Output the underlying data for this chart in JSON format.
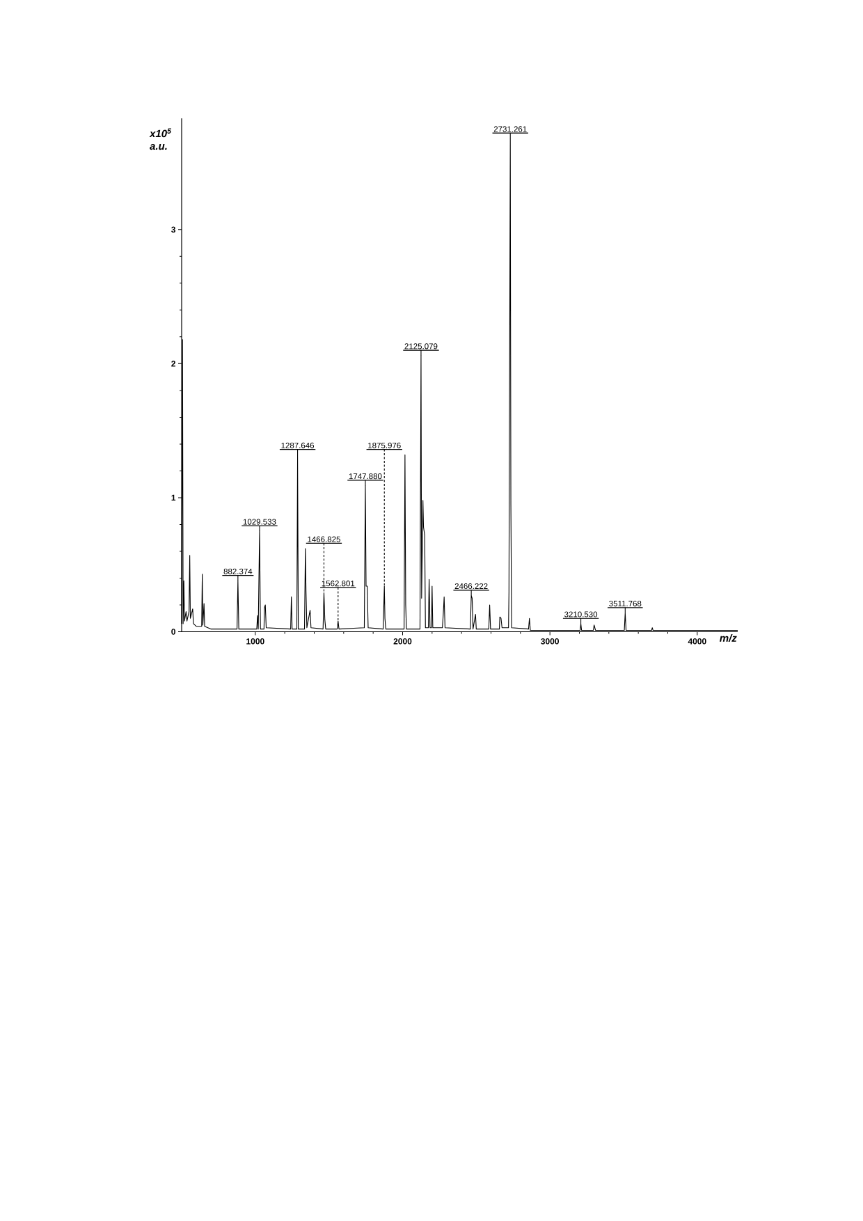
{
  "chart_data": {
    "type": "line",
    "xlabel": "m/z",
    "ylabel": "x10$^{5}$ a.u.",
    "xlim": [
      500,
      4275
    ],
    "ylim": [
      0,
      3.83
    ],
    "xticks": [
      1000,
      2000,
      3000,
      4000
    ],
    "yticks": [
      0,
      1,
      2,
      3
    ],
    "annotations": [
      {
        "text": "882.374",
        "x": 882,
        "y": 0.38
      },
      {
        "text": "1029.533",
        "x": 1029,
        "y": 0.75
      },
      {
        "text": "1287.646",
        "x": 1287,
        "y": 1.32
      },
      {
        "text": "1466.825",
        "x": 1466,
        "y": 0.29
      },
      {
        "text": "1562.801",
        "x": 1562,
        "y": 0.08
      },
      {
        "text": "1747.880",
        "x": 1747,
        "y": 1.09
      },
      {
        "text": "1875.976",
        "x": 1876,
        "y": 0.34
      },
      {
        "text": "2125.079",
        "x": 2125,
        "y": 2.06
      },
      {
        "text": "2466.222",
        "x": 2466,
        "y": 0.27
      },
      {
        "text": "2731.261",
        "x": 2731,
        "y": 3.68
      },
      {
        "text": "3210.530",
        "x": 3210,
        "y": 0.06
      },
      {
        "text": "3511.768",
        "x": 3511,
        "y": 0.14
      }
    ],
    "series": [
      {
        "color": "#000000",
        "x": [
          500,
          506,
          510,
          515,
          519,
          530,
          536,
          550,
          555,
          559,
          575,
          580,
          600,
          636,
          640,
          644,
          652,
          656,
          700,
          876,
          882,
          888,
          1010,
          1015,
          1020,
          1029,
          1035,
          1059,
          1062,
          1068,
          1074,
          1240,
          1245,
          1250,
          1282,
          1287,
          1292,
          1334,
          1340,
          1344,
          1350,
          1372,
          1378,
          1460,
          1466,
          1472,
          1478,
          1556,
          1562,
          1568,
          1740,
          1747,
          1752,
          1760,
          1766,
          1868,
          1876,
          1880,
          1886,
          2010,
          2016,
          2021,
          2026,
          2118,
          2125,
          2129,
          2138,
          2142,
          2150,
          2155,
          2175,
          2180,
          2186,
          2196,
          2200,
          2205,
          2270,
          2276,
          2282,
          2288,
          2460,
          2466,
          2472,
          2478,
          2495,
          2500,
          2585,
          2591,
          2597,
          2650,
          2657,
          2660,
          2668,
          2675,
          2715,
          2719,
          2722,
          2731,
          2735,
          2740,
          2855,
          2861,
          2867,
          3205,
          3210,
          3215,
          3295,
          3300,
          3310,
          3505,
          3511,
          3517,
          3690,
          3695,
          3700,
          4275
        ],
        "values": [
          0.06,
          2.18,
          0.06,
          0.38,
          0.08,
          0.15,
          0.08,
          0.15,
          0.57,
          0.1,
          0.17,
          0.06,
          0.04,
          0.04,
          0.43,
          0.05,
          0.21,
          0.04,
          0.02,
          0.02,
          0.38,
          0.02,
          0.02,
          0.12,
          0.02,
          0.75,
          0.02,
          0.02,
          0.18,
          0.2,
          0.03,
          0.02,
          0.26,
          0.02,
          0.02,
          1.32,
          0.02,
          0.02,
          0.62,
          0.31,
          0.03,
          0.16,
          0.03,
          0.02,
          0.29,
          0.09,
          0.02,
          0.02,
          0.08,
          0.02,
          0.03,
          1.09,
          0.34,
          0.34,
          0.03,
          0.02,
          0.34,
          0.1,
          0.02,
          0.02,
          1.32,
          0.2,
          0.02,
          0.02,
          2.06,
          0.25,
          0.98,
          0.78,
          0.72,
          0.03,
          0.03,
          0.39,
          0.03,
          0.03,
          0.34,
          0.03,
          0.03,
          0.13,
          0.26,
          0.03,
          0.02,
          0.27,
          0.25,
          0.02,
          0.13,
          0.02,
          0.02,
          0.2,
          0.02,
          0.02,
          0.02,
          0.11,
          0.1,
          0.03,
          0.03,
          0.03,
          0.3,
          3.68,
          0.95,
          0.03,
          0.02,
          0.1,
          0.01,
          0.01,
          0.06,
          0.01,
          0.01,
          0.05,
          0.01,
          0.01,
          0.14,
          0.01,
          0.01,
          0.03,
          0.01,
          0.01
        ]
      }
    ]
  }
}
